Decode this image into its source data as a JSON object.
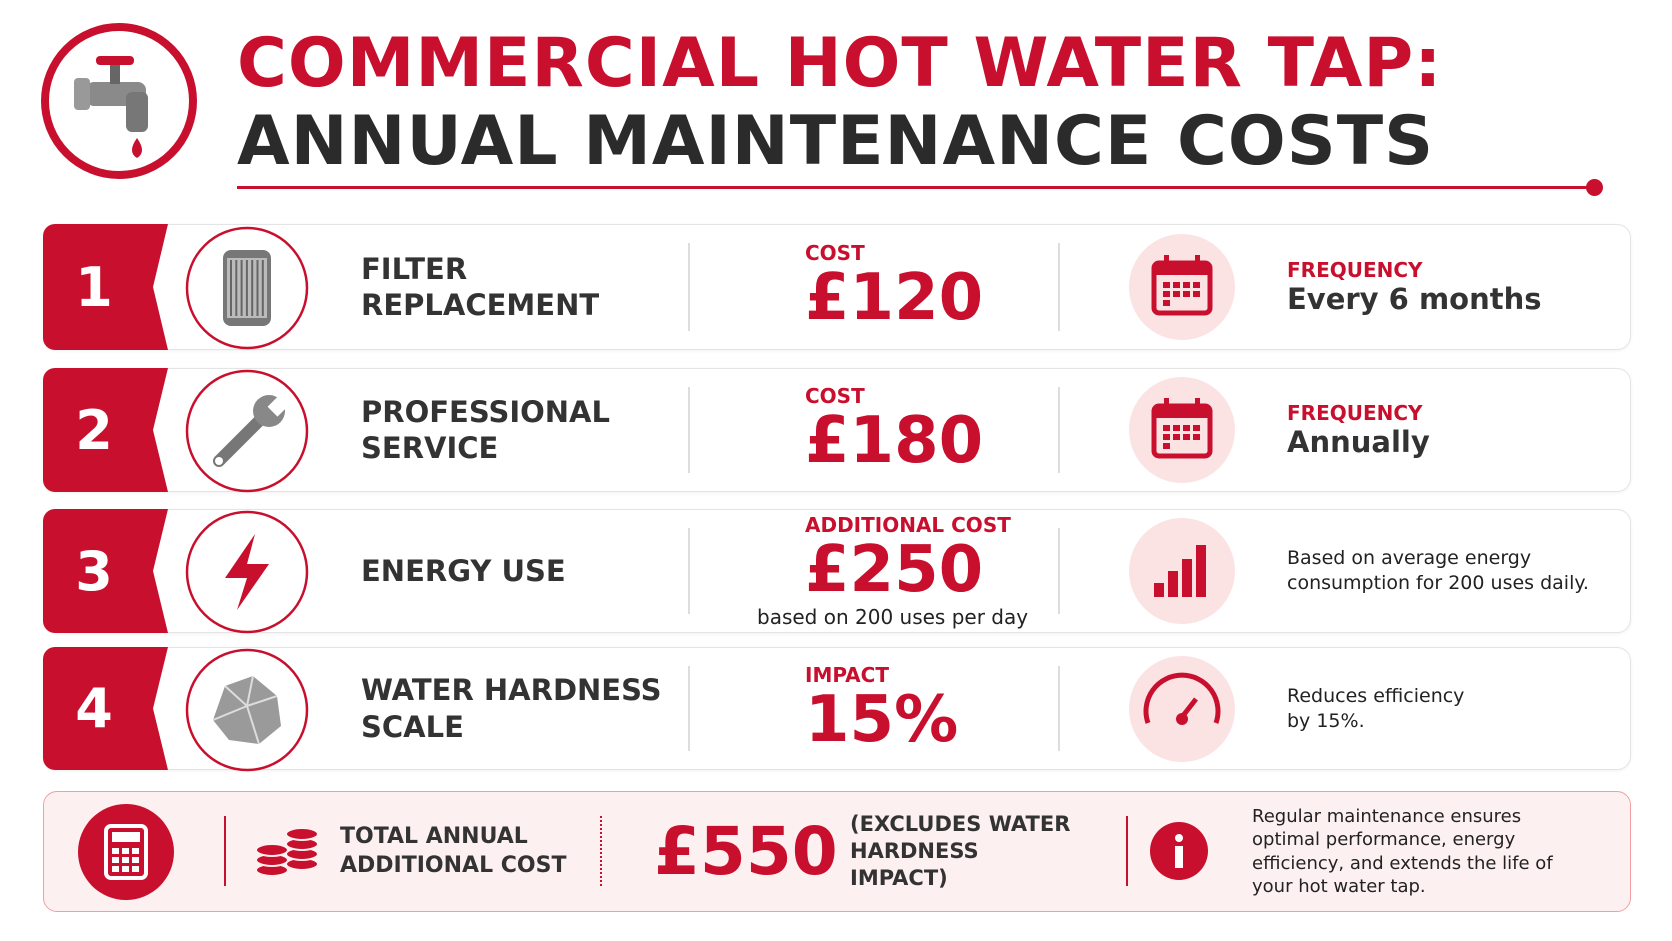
{
  "header": {
    "title_line1": "COMMERCIAL HOT WATER TAP:",
    "title_line2": "ANNUAL MAINTENANCE COSTS"
  },
  "items": [
    {
      "number": "1",
      "name": "FILTER REPLACEMENT",
      "cost_label": "COST",
      "cost": "£120",
      "detail_label": "FREQUENCY",
      "detail": "Every 6 months"
    },
    {
      "number": "2",
      "name": "PROFESSIONAL SERVICE",
      "cost_label": "COST",
      "cost": "£180",
      "detail_label": "FREQUENCY",
      "detail": "Annually"
    },
    {
      "number": "3",
      "name": "ENERGY USE",
      "cost_label": "ADDITIONAL COST",
      "cost": "£250",
      "cost_note": "based on 200 uses per day",
      "detail": "Based on average energy consumption for 200 uses daily."
    },
    {
      "number": "4",
      "name": "WATER HARDNESS SCALE",
      "cost_label": "IMPACT",
      "cost": "15%",
      "detail": "Reduces efficiency by 15%."
    }
  ],
  "total": {
    "label": "TOTAL ANNUAL ADDITIONAL COST",
    "value": "£550",
    "note": "(EXCLUDES WATER HARDNESS IMPACT)",
    "info": "Regular maintenance ensures optimal performance, energy efficiency, and extends the life of your hot water tap."
  }
}
